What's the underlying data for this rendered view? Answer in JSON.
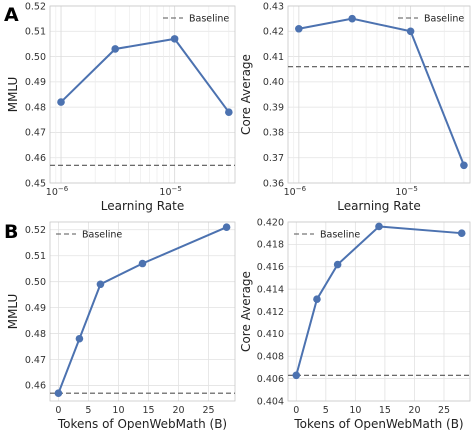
{
  "panel_labels": [
    "A",
    "B"
  ],
  "chart_data": [
    {
      "type": "line",
      "panel": "A",
      "xscale": "log",
      "xlim": [
        8e-07,
        3.4e-05
      ],
      "ylim": [
        0.45,
        0.52
      ],
      "x": [
        1e-06,
        3e-06,
        1e-05,
        3e-05
      ],
      "series": [
        {
          "values": [
            0.482,
            0.503,
            0.507,
            0.478
          ],
          "color": "#4c72b0"
        }
      ],
      "baseline": {
        "label": "Baseline",
        "value": 0.457
      },
      "xlabel": "Learning Rate",
      "ylabel": "MMLU",
      "yticks": [
        0.45,
        0.46,
        0.47,
        0.48,
        0.49,
        0.5,
        0.51,
        0.52
      ],
      "ytick_labels": [
        "0.45",
        "0.46",
        "0.47",
        "0.48",
        "0.49",
        "0.50",
        "0.51",
        "0.52"
      ],
      "xtick_labels": [
        {
          "base": "10",
          "exp": "−6"
        },
        {
          "base": "10",
          "exp": "−5"
        }
      ],
      "legend_position": "top-right",
      "grid": true
    },
    {
      "type": "line",
      "panel": "A",
      "xscale": "log",
      "xlim": [
        8e-07,
        3.4e-05
      ],
      "ylim": [
        0.36,
        0.43
      ],
      "x": [
        1e-06,
        3e-06,
        1e-05,
        3e-05
      ],
      "series": [
        {
          "values": [
            0.421,
            0.425,
            0.42,
            0.367
          ],
          "color": "#4c72b0"
        }
      ],
      "baseline": {
        "label": "Baseline",
        "value": 0.406
      },
      "xlabel": "Learning Rate",
      "ylabel": "Core Average",
      "yticks": [
        0.36,
        0.37,
        0.38,
        0.39,
        0.4,
        0.41,
        0.42,
        0.43
      ],
      "ytick_labels": [
        "0.36",
        "0.37",
        "0.38",
        "0.39",
        "0.40",
        "0.41",
        "0.42",
        "0.43"
      ],
      "xtick_labels": [
        {
          "base": "10",
          "exp": "−6"
        },
        {
          "base": "10",
          "exp": "−5"
        }
      ],
      "legend_position": "top-right",
      "grid": true
    },
    {
      "type": "line",
      "panel": "B",
      "xscale": "linear",
      "xlim": [
        -1.4,
        29.4
      ],
      "ylim": [
        0.454,
        0.523
      ],
      "x": [
        0,
        3.5,
        7,
        14,
        28
      ],
      "series": [
        {
          "values": [
            0.457,
            0.478,
            0.499,
            0.507,
            0.521
          ],
          "color": "#4c72b0"
        }
      ],
      "baseline": {
        "label": "Baseline",
        "value": 0.457
      },
      "xlabel": "Tokens of OpenWebMath (B)",
      "ylabel": "MMLU",
      "xticks": [
        0,
        5,
        10,
        15,
        20,
        25
      ],
      "xtick_labels": [
        "0",
        "5",
        "10",
        "15",
        "20",
        "25"
      ],
      "yticks": [
        0.46,
        0.47,
        0.48,
        0.49,
        0.5,
        0.51,
        0.52
      ],
      "ytick_labels": [
        "0.46",
        "0.47",
        "0.48",
        "0.49",
        "0.50",
        "0.51",
        "0.52"
      ],
      "legend_position": "top-left",
      "grid": true
    },
    {
      "type": "line",
      "panel": "B",
      "xscale": "linear",
      "xlim": [
        -1.4,
        29.4
      ],
      "ylim": [
        0.404,
        0.42
      ],
      "x": [
        0,
        3.5,
        7,
        14,
        28
      ],
      "series": [
        {
          "values": [
            0.4063,
            0.4131,
            0.4162,
            0.4196,
            0.419
          ],
          "color": "#4c72b0"
        }
      ],
      "baseline": {
        "label": "Baseline",
        "value": 0.4063
      },
      "xlabel": "Tokens of OpenWebMath (B)",
      "ylabel": "Core Average",
      "xticks": [
        0,
        5,
        10,
        15,
        20,
        25
      ],
      "xtick_labels": [
        "0",
        "5",
        "10",
        "15",
        "20",
        "25"
      ],
      "yticks": [
        0.404,
        0.406,
        0.408,
        0.41,
        0.412,
        0.414,
        0.416,
        0.418,
        0.42
      ],
      "ytick_labels": [
        "0.404",
        "0.406",
        "0.408",
        "0.410",
        "0.412",
        "0.414",
        "0.416",
        "0.418",
        "0.420"
      ],
      "legend_position": "top-left",
      "grid": true
    }
  ]
}
